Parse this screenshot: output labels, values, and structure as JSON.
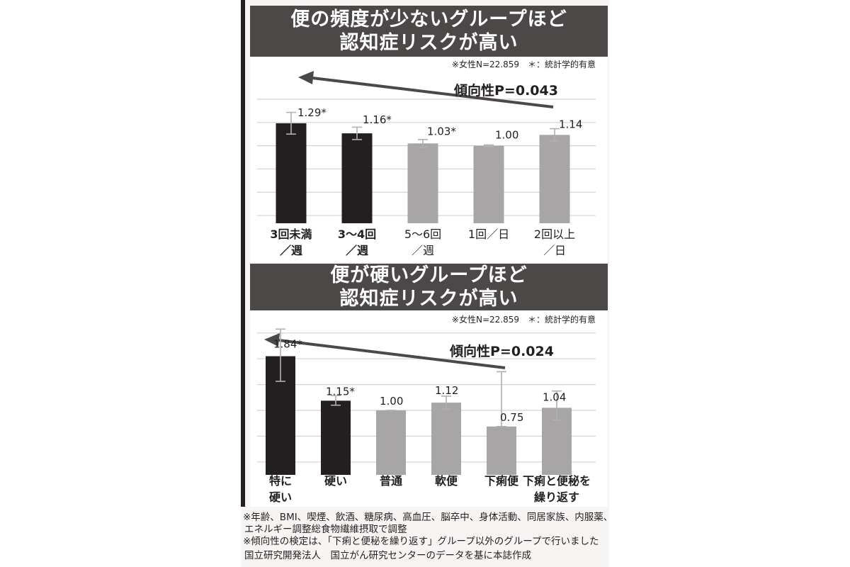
{
  "chart_data": [
    {
      "type": "bar",
      "title": "便の頻度が少ないグループほど認知症リスクが高い",
      "title_lines": [
        "便の頻度が少ないグループほど",
        "認知症リスクが高い"
      ],
      "subtitle": "※女性N=22.859　＊：統計学的有意",
      "annotation": "傾向性P=0.043",
      "trend_arrow": "right-to-left",
      "grid": true,
      "ylim": [
        0,
        1.6
      ],
      "categories": [
        {
          "lines": [
            "3回未満",
            "／週"
          ],
          "highlight": true
        },
        {
          "lines": [
            "3〜4回",
            "／週"
          ],
          "highlight": true
        },
        {
          "lines": [
            "5〜6回",
            "／週"
          ],
          "highlight": false
        },
        {
          "lines": [
            "1回／日"
          ],
          "highlight": false
        },
        {
          "lines": [
            "2回以上",
            "／日"
          ],
          "highlight": false
        }
      ],
      "values": [
        1.29,
        1.16,
        1.03,
        1.0,
        1.14
      ],
      "value_labels": [
        "1.29*",
        "1.16*",
        "1.03*",
        "1.00",
        "1.14"
      ],
      "error_low": [
        1.15,
        1.08,
        0.98,
        0.99,
        1.06
      ],
      "error_high": [
        1.43,
        1.24,
        1.08,
        1.01,
        1.22
      ],
      "colors": {
        "highlight": "#231f20",
        "normal": "#a7a5a5",
        "grid": "#d4d2d2",
        "whisker": "#b1afaf"
      }
    },
    {
      "type": "bar",
      "title": "便が硬いグループほど認知症リスクが高い",
      "title_lines": [
        "便が硬いグループほど",
        "認知症リスクが高い"
      ],
      "subtitle": "※女性N=22.859　＊：統計学的有意",
      "annotation": "傾向性P=0.024",
      "trend_arrow": "right-to-left",
      "grid": true,
      "ylim": [
        0,
        2.0
      ],
      "categories": [
        {
          "lines": [
            "特に",
            "硬い"
          ],
          "highlight": true
        },
        {
          "lines": [
            "硬い"
          ],
          "highlight": true
        },
        {
          "lines": [
            "普通"
          ],
          "highlight": true
        },
        {
          "lines": [
            "軟便"
          ],
          "highlight": true
        },
        {
          "lines": [
            "下痢便"
          ],
          "highlight": true
        },
        {
          "lines": [
            "下痢と便秘を",
            "繰り返す"
          ],
          "highlight": false
        }
      ],
      "values": [
        1.84,
        1.15,
        1.0,
        1.12,
        0.75,
        1.04
      ],
      "value_labels": [
        "1.84*",
        "1.15*",
        "1.00",
        "1.12",
        "0.75",
        "1.04"
      ],
      "error_low": [
        1.45,
        1.08,
        1.0,
        1.02,
        0.75,
        0.85
      ],
      "error_high": [
        2.26,
        1.23,
        1.0,
        1.22,
        1.6,
        1.3
      ],
      "colors": {
        "bar_dark": "#231f20",
        "bar_gray": "#a7a5a5",
        "grid": "#d4d2d2",
        "whisker": "#b1afaf"
      },
      "dark_bars": [
        0,
        1
      ]
    }
  ],
  "footnotes": [
    "※年齢、BMI、喫煙、飲酒、糖尿病、高血圧、脳卒中、身体活動、同居家族、内服薬、",
    "エネルギー調整総食物繊維摂取で調整",
    "※傾向性の検定は、「下痢と便秘を繰り返す」グループ以外のグループで行いました",
    "国立研究開発法人　国立がん研究センターのデータを基に本誌作成"
  ]
}
